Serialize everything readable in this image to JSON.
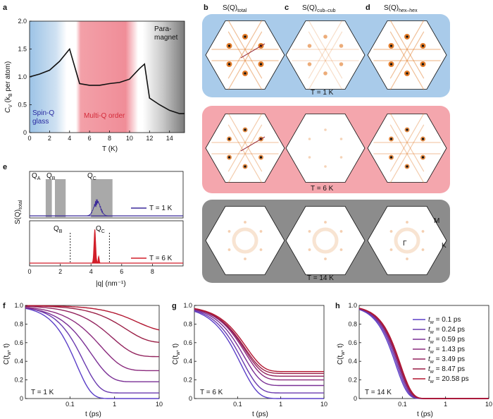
{
  "panel_letters": [
    "a",
    "b",
    "c",
    "d",
    "e",
    "f",
    "g",
    "h"
  ],
  "colors": {
    "spin_glass": "#9cc3e6",
    "multiq": "#f08d98",
    "paramagnet": "#8a8a8a",
    "panel_blue": "#a9cbea",
    "panel_pink": "#f4a6ad",
    "panel_gray": "#8c8c8c",
    "line_1K": "#3b2a9a",
    "line_6K": "#d21f2a",
    "spot": "#e0751f"
  },
  "panel_a": {
    "ylabel_main": "C",
    "ylabel_sub": "V",
    "ylabel_rest": " (k",
    "ylabel_sub2": "B",
    "ylabel_end": " per atom)",
    "xlabel": "T (K)",
    "region_spin_glass_line1": "Spin-Q",
    "region_spin_glass_line2": "glass",
    "region_multiq": "Multi-Q order",
    "region_para_line1": "Para-",
    "region_para_line2": "magnet",
    "xticks": [
      "0",
      "2",
      "4",
      "6",
      "8",
      "10",
      "12",
      "14"
    ],
    "yticks": [
      "0",
      "0.5",
      "1.0",
      "1.5",
      "2.0"
    ]
  },
  "panel_bcd": {
    "col_titles": [
      {
        "main": "S(Q)",
        "sub": "total"
      },
      {
        "main": "S(Q)",
        "sub": "cub–cub"
      },
      {
        "main": "S(Q)",
        "sub": "hex–hex"
      }
    ],
    "row_temps": [
      "T = 1 K",
      "T = 6 K",
      "T = 14 K"
    ],
    "point_labels": {
      "M": "M",
      "K": "K",
      "G": "Γ"
    }
  },
  "panel_e": {
    "ylabel_main": "S(Q)",
    "ylabel_sub": "total",
    "xlabel": "|q| (nm⁻¹)",
    "xticks": [
      "0",
      "2",
      "4",
      "6",
      "8"
    ],
    "legend_top": "T = 1 K",
    "legend_bottom": "T = 6 K",
    "top_labels": [
      {
        "main": "Q",
        "sub": "A"
      },
      {
        "main": "Q",
        "sub": "B"
      },
      {
        "main": "Q",
        "sub": "C"
      }
    ],
    "bottom_labels": [
      {
        "main": "Q",
        "sub": "B"
      },
      {
        "main": "Q",
        "sub": "C"
      }
    ]
  },
  "panel_fgh": {
    "ylabel_main": "C(t",
    "ylabel_sub": "w",
    "ylabel_end": ", t)",
    "xlabel": "t (ps)",
    "yticks": [
      "0",
      "0.2",
      "0.4",
      "0.6",
      "0.8",
      "1.0"
    ],
    "xticks_fg": [
      "0.1",
      "1",
      "10"
    ],
    "xticks_h": [
      "0.1",
      "1",
      "10"
    ],
    "temps": [
      "T = 1 K",
      "T = 6 K",
      "T = 14 K"
    ],
    "legend": [
      "t",
      "t",
      "t",
      "t",
      "t",
      "t",
      "t"
    ],
    "legend_sub": "w",
    "legend_values": [
      "= 0.1 ps",
      "= 0.24 ps",
      "= 0.59 ps",
      "= 1.43 ps",
      "= 3.49 ps",
      "= 8.47 ps",
      "= 20.58 ps"
    ]
  },
  "chart_data": [
    {
      "type": "line",
      "panel": "a",
      "xlabel": "T (K)",
      "ylabel": "CV (kB per atom)",
      "xlim": [
        0,
        15.5
      ],
      "ylim": [
        0,
        2.0
      ],
      "x": [
        0,
        1,
        2,
        3,
        4,
        5,
        6,
        7,
        8,
        9,
        10,
        11,
        11.5,
        12,
        13,
        14,
        15,
        15.5
      ],
      "series": [
        {
          "values": [
            1.0,
            1.05,
            1.12,
            1.28,
            1.5,
            0.88,
            0.85,
            0.85,
            0.88,
            0.9,
            0.96,
            1.15,
            1.23,
            0.62,
            0.5,
            0.4,
            0.34,
            0.34
          ]
        }
      ]
    },
    {
      "type": "line",
      "panel": "e",
      "xlabel": "|q| (nm⁻¹)",
      "ylabel": "S(Q)total",
      "xlim": [
        0,
        10
      ],
      "series": [
        {
          "name": "T = 1 K"
        },
        {
          "name": "T = 6 K"
        }
      ]
    },
    {
      "type": "line",
      "panel": "f",
      "xlabel": "t (ps)",
      "ylabel": "C(tw, t)",
      "xscale": "log",
      "xlim": [
        0.01,
        10
      ],
      "ylim": [
        0,
        1.0
      ],
      "series_plateau": [
        0.0,
        0.06,
        0.18,
        0.3,
        0.45,
        0.6,
        0.72
      ]
    },
    {
      "type": "line",
      "panel": "g",
      "xlabel": "t (ps)",
      "ylabel": "C(tw, t)",
      "xscale": "log",
      "xlim": [
        0.01,
        10
      ],
      "ylim": [
        0,
        1.0
      ],
      "series_plateau": [
        0.0,
        0.06,
        0.14,
        0.2,
        0.24,
        0.27,
        0.29
      ]
    },
    {
      "type": "line",
      "panel": "h",
      "xlabel": "t (ps)",
      "ylabel": "C(tw, t)",
      "xscale": "log",
      "xlim": [
        0.01,
        10
      ],
      "ylim": [
        0,
        1.0
      ],
      "series": [
        {
          "name": "tw = 0.1 ps"
        },
        {
          "name": "tw = 0.24 ps"
        },
        {
          "name": "tw = 0.59 ps"
        },
        {
          "name": "tw = 1.43 ps"
        },
        {
          "name": "tw = 3.49 ps"
        },
        {
          "name": "tw = 8.47 ps"
        },
        {
          "name": "tw = 20.58 ps"
        }
      ]
    }
  ]
}
